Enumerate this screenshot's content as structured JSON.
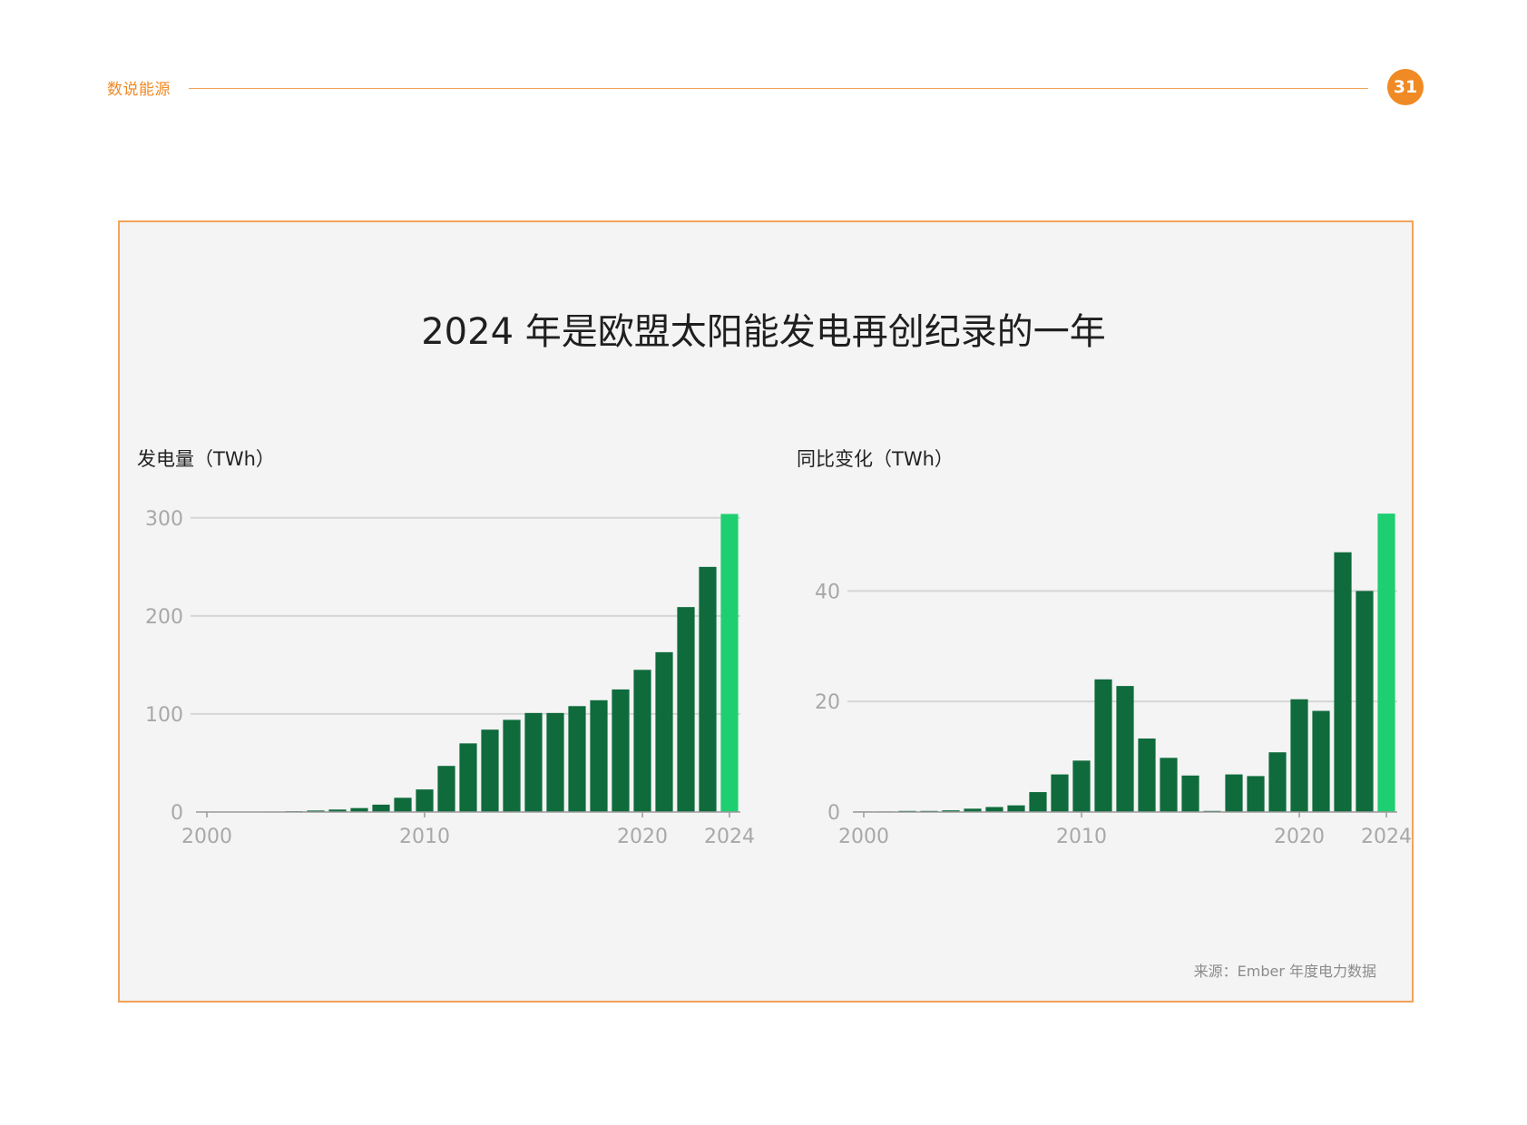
{
  "header": {
    "section_label": "数说能源",
    "page_number": "31"
  },
  "figure": {
    "title": "2024 年是欧盟太阳能发电再创纪录的一年",
    "source": "来源：Ember 年度电力数据"
  },
  "colors": {
    "accent": "#f08a24",
    "bar": "#0f6b3c",
    "highlight": "#1ecf72",
    "grid": "#d6d6d6",
    "tick_text": "#a8a8a8"
  },
  "chart_data": [
    {
      "type": "bar",
      "ylabel": "发电量（TWh）",
      "x": [
        2000,
        2001,
        2002,
        2003,
        2004,
        2005,
        2006,
        2007,
        2008,
        2009,
        2010,
        2011,
        2012,
        2013,
        2014,
        2015,
        2016,
        2017,
        2018,
        2019,
        2020,
        2021,
        2022,
        2023,
        2024
      ],
      "values": [
        0.1,
        0.2,
        0.3,
        0.5,
        0.8,
        1.5,
        2.5,
        4,
        7.5,
        14.5,
        23,
        47,
        70,
        84,
        94,
        101,
        101,
        108,
        114,
        125,
        145,
        163,
        209,
        250,
        304
      ],
      "highlight_x": 2024,
      "xticks": [
        2000,
        2010,
        2020,
        2024
      ],
      "yticks": [
        0,
        100,
        200,
        300
      ],
      "ylim": [
        0,
        310
      ],
      "grid": true
    },
    {
      "type": "bar",
      "ylabel": "同比变化（TWh）",
      "x": [
        2000,
        2001,
        2002,
        2003,
        2004,
        2005,
        2006,
        2007,
        2008,
        2009,
        2010,
        2011,
        2012,
        2013,
        2014,
        2015,
        2016,
        2017,
        2018,
        2019,
        2020,
        2021,
        2022,
        2023,
        2024
      ],
      "values": [
        0.1,
        0.1,
        0.2,
        0.2,
        0.3,
        0.6,
        0.9,
        1.2,
        3.6,
        6.8,
        9.3,
        24,
        22.8,
        13.3,
        9.8,
        6.6,
        0.2,
        6.8,
        6.5,
        10.8,
        20.4,
        18.3,
        47,
        40,
        54
      ],
      "highlight_x": 2024,
      "xticks": [
        2000,
        2010,
        2020,
        2024
      ],
      "yticks": [
        0,
        20,
        40
      ],
      "ylim": [
        0,
        55
      ],
      "grid": true
    }
  ]
}
